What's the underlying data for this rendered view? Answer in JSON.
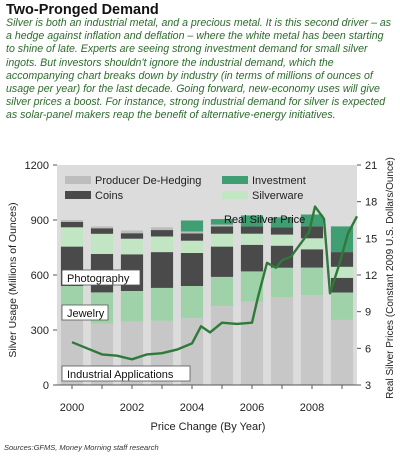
{
  "header": {
    "title": "Two-Pronged Demand",
    "intro": "Silver is both an industrial metal, and a precious metal.  It is this second driver – as a hedge against inflation and deflation – where the white metal has been starting to shine of late. Experts are seeing strong investment demand for small silver ingots. But investors shouldn't ignore the industrial demand, which the accompanying chart breaks down by industry (in terms of millions of ounces of usage per year) for the last decade. Going forward, new-economy uses will give silver prices a boost. For instance, strong industrial demand for silver is expected as solar-panel makers reap the benefit of alternative-energy initiatives."
  },
  "source": "Sources:GFMS, Money Morning staff research",
  "colors": {
    "industrial": "#c7c7c7",
    "jewelry": "#9fd2a9",
    "photography": "#4a4a4a",
    "silverware": "#c2e6c4",
    "coins": "#4a4a4a",
    "investment": "#3f9e72",
    "dehedging": "#bdbdbd",
    "price_line": "#2e7a39",
    "plot_bg": "#dcdcdc"
  },
  "chart_data": {
    "type": "bar",
    "xlabel": "Price Change (By Year)",
    "ylabel": "Silver Usage (Millions of Ounces)",
    "ylabel_right": "Real Silver Prices (Constant 2009 U.S. Dollars/Ounce)",
    "ylim": [
      0,
      1200
    ],
    "ylim_right": [
      3,
      21
    ],
    "yticks": [
      "0",
      "300",
      "600",
      "900",
      "1200"
    ],
    "yticks_right": [
      "3",
      "6",
      "9",
      "12",
      "15",
      "18",
      "21"
    ],
    "xticks": [
      "2000",
      "2002",
      "2004",
      "2006",
      "2008"
    ],
    "categories": [
      "2000",
      "2001",
      "2002",
      "2003",
      "2004",
      "2005",
      "2006",
      "2007",
      "2008",
      "2009"
    ],
    "legend": [
      "Producer De-Hedging",
      "Investment",
      "Coins",
      "Silverware"
    ],
    "series": [
      {
        "name": "Industrial Applications",
        "key": "industrial",
        "values": [
          370,
          335,
          345,
          350,
          365,
          430,
          455,
          480,
          490,
          355
        ]
      },
      {
        "name": "Jewelry",
        "key": "jewelry",
        "values": [
          170,
          170,
          168,
          180,
          175,
          160,
          165,
          160,
          150,
          150
        ]
      },
      {
        "name": "Photography",
        "key": "photography",
        "values": [
          215,
          210,
          200,
          195,
          180,
          165,
          145,
          120,
          100,
          80
        ]
      },
      {
        "name": "Silverware",
        "key": "silverware",
        "values": [
          105,
          110,
          85,
          85,
          67,
          70,
          60,
          60,
          60,
          60
        ]
      },
      {
        "name": "Coins",
        "key": "coins",
        "values": [
          30,
          30,
          30,
          35,
          40,
          40,
          40,
          40,
          65,
          80
        ]
      },
      {
        "name": "Producer De-Hedging",
        "key": "dehedging",
        "values": [
          10,
          10,
          15,
          15,
          10,
          10,
          0,
          0,
          0,
          0
        ]
      },
      {
        "name": "Investment",
        "key": "investment",
        "values": [
          0,
          0,
          0,
          0,
          60,
          30,
          60,
          55,
          65,
          140
        ]
      }
    ],
    "price_line": {
      "name": "Real Silver Price",
      "x": [
        2000.0,
        2000.5,
        2001.0,
        2001.5,
        2002.0,
        2002.5,
        2003.0,
        2003.5,
        2004.0,
        2004.3,
        2004.6,
        2005.0,
        2005.5,
        2006.0,
        2006.2,
        2006.5,
        2006.8,
        2007.0,
        2007.3,
        2007.6,
        2007.9,
        2008.1,
        2008.4,
        2008.6,
        2008.9,
        2009.2,
        2009.5
      ],
      "y": [
        6.5,
        6.0,
        5.5,
        5.4,
        5.1,
        5.5,
        5.6,
        5.9,
        6.4,
        7.8,
        7.3,
        8.1,
        8.0,
        8.1,
        10.2,
        13.0,
        12.6,
        13.2,
        13.5,
        14.5,
        15.5,
        17.6,
        16.6,
        10.5,
        12.8,
        15.4,
        16.8
      ]
    },
    "annotations": [
      "Photography",
      "Jewelry",
      "Industrial Applications",
      "Real Silver Price"
    ],
    "grid": false
  }
}
